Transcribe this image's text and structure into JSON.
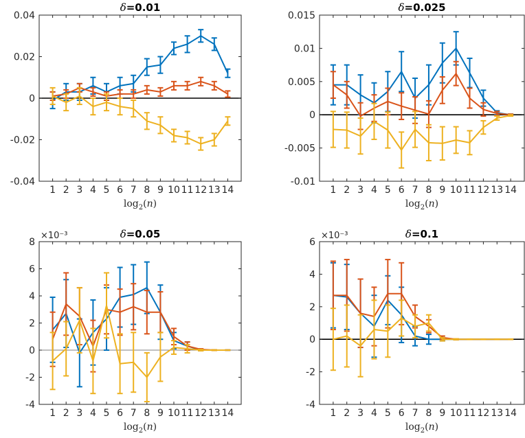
{
  "colors": {
    "s1": "#0072BD",
    "s2": "#D95319",
    "s3": "#EDB120",
    "axis": "#262626",
    "zero": "#000000"
  },
  "chart_data": [
    {
      "type": "line",
      "title": "δ=0.01",
      "xlabel": "log2(n)",
      "ylabel": "",
      "x": [
        1,
        2,
        3,
        4,
        5,
        6,
        7,
        8,
        9,
        10,
        11,
        12,
        13,
        14
      ],
      "xticks": [
        "1",
        "2",
        "3",
        "4",
        "5",
        "6",
        "7",
        "8",
        "9",
        "10",
        "11",
        "12",
        "13",
        "14"
      ],
      "xlim": [
        0,
        15
      ],
      "ylim": [
        -0.04,
        0.04
      ],
      "yticks": [
        -0.04,
        -0.02,
        0,
        0.02,
        0.04
      ],
      "ytick_labels": [
        "-0.04",
        "-0.02",
        "0",
        "0.02",
        "0.04"
      ],
      "multiplier": "",
      "zero_line": "thick",
      "series": [
        {
          "color": "s1",
          "y": [
            -0.001,
            0.003,
            0.003,
            0.006,
            0.003,
            0.006,
            0.007,
            0.015,
            0.016,
            0.024,
            0.026,
            0.03,
            0.026,
            0.012
          ],
          "err": [
            0.004,
            0.004,
            0.004,
            0.004,
            0.004,
            0.004,
            0.004,
            0.004,
            0.004,
            0.003,
            0.004,
            0.003,
            0.003,
            0.002
          ]
        },
        {
          "color": "s2",
          "y": [
            0.001,
            0.002,
            0.005,
            0.003,
            0.001,
            0.002,
            0.002,
            0.004,
            0.003,
            0.006,
            0.006,
            0.008,
            0.006,
            0.002
          ],
          "err": [
            0.002,
            0.002,
            0.002,
            0.002,
            0.002,
            0.002,
            0.002,
            0.002,
            0.002,
            0.002,
            0.002,
            0.002,
            0.002,
            0.0015
          ]
        },
        {
          "color": "s3",
          "y": [
            0.001,
            -0.002,
            0.001,
            -0.004,
            -0.002,
            -0.004,
            -0.005,
            -0.011,
            -0.013,
            -0.018,
            -0.019,
            -0.022,
            -0.02,
            -0.011
          ],
          "err": [
            0.004,
            0.004,
            0.004,
            0.004,
            0.004,
            0.004,
            0.004,
            0.004,
            0.004,
            0.003,
            0.003,
            0.003,
            0.003,
            0.002
          ]
        }
      ]
    },
    {
      "type": "line",
      "title": "δ=0.025",
      "xlabel": "log2(n)",
      "ylabel": "",
      "x": [
        1,
        2,
        3,
        4,
        5,
        6,
        7,
        8,
        9,
        10,
        11,
        12,
        13,
        14
      ],
      "xticks": [
        "1",
        "2",
        "3",
        "4",
        "5",
        "6",
        "7",
        "8",
        "9",
        "10",
        "11",
        "12",
        "13",
        "14"
      ],
      "xlim": [
        0,
        15
      ],
      "ylim": [
        -0.01,
        0.015
      ],
      "yticks": [
        -0.01,
        -0.005,
        0,
        0.005,
        0.01,
        0.015
      ],
      "ytick_labels": [
        "-0.01",
        "-0.005",
        "0",
        "0.005",
        "0.01",
        "0.015"
      ],
      "multiplier": "",
      "zero_line": "thick",
      "series": [
        {
          "color": "s1",
          "y": [
            0.0045,
            0.0045,
            0.003,
            0.0018,
            0.0035,
            0.0065,
            0.0025,
            0.0045,
            0.0078,
            0.01,
            0.0063,
            0.0025,
            0.0003,
            0
          ],
          "err": [
            0.003,
            0.003,
            0.003,
            0.003,
            0.003,
            0.003,
            0.003,
            0.003,
            0.003,
            0.0025,
            0.0022,
            0.0012,
            0.0003,
            0.0001
          ]
        },
        {
          "color": "s2",
          "y": [
            0.0045,
            0.003,
            -0.0002,
            0.001,
            0.002,
            0.0013,
            0.0007,
            0.0001,
            0.0037,
            0.0062,
            0.0025,
            0.0008,
            0.0002,
            0
          ],
          "err": [
            0.002,
            0.002,
            0.002,
            0.002,
            0.002,
            0.002,
            0.002,
            0.002,
            0.002,
            0.0018,
            0.0015,
            0.001,
            0.0003,
            0.0001
          ]
        },
        {
          "color": "s3",
          "y": [
            -0.0022,
            -0.0023,
            -0.0032,
            -0.001,
            -0.0023,
            -0.0053,
            -0.0022,
            -0.0042,
            -0.0043,
            -0.0038,
            -0.0042,
            -0.0019,
            -0.0005,
            -0.0001
          ],
          "err": [
            0.0027,
            0.0027,
            0.0027,
            0.0027,
            0.0027,
            0.0027,
            0.0027,
            0.0027,
            0.0025,
            0.002,
            0.0018,
            0.001,
            0.0003,
            0.0001
          ]
        }
      ]
    },
    {
      "type": "line",
      "title": "δ=0.05",
      "xlabel": "log2(n)",
      "ylabel": "",
      "x": [
        1,
        2,
        3,
        4,
        5,
        6,
        7,
        8,
        9,
        10,
        11,
        12,
        13,
        14
      ],
      "xticks": [
        "1",
        "2",
        "3",
        "4",
        "5",
        "6",
        "7",
        "8",
        "9",
        "10",
        "11",
        "12",
        "13",
        "14"
      ],
      "xlim": [
        0,
        15
      ],
      "ylim": [
        -4,
        8
      ],
      "yticks": [
        -4,
        -2,
        0,
        2,
        4,
        6,
        8
      ],
      "ytick_labels": [
        "-4",
        "-2",
        "0",
        "2",
        "4",
        "6",
        "8"
      ],
      "multiplier": "×10⁻³",
      "zero_line": "thin",
      "series": [
        {
          "color": "s1",
          "y": [
            1.5,
            2.7,
            -0.2,
            1.3,
            2.3,
            3.9,
            4.1,
            4.6,
            2.8,
            0.7,
            0.3,
            0,
            0,
            0
          ],
          "err": [
            2.4,
            2.5,
            2.5,
            2.4,
            2.3,
            2.2,
            2.2,
            1.9,
            2.0,
            0.6,
            0.3,
            0.05,
            0.02,
            0.01
          ]
        },
        {
          "color": "s2",
          "y": [
            0.8,
            3.4,
            2.5,
            0.3,
            3.0,
            2.8,
            3.2,
            2.8,
            2.8,
            1.0,
            0.3,
            0.05,
            0,
            0
          ],
          "err": [
            2.0,
            2.3,
            2.1,
            1.9,
            1.8,
            1.7,
            1.7,
            1.6,
            1.5,
            0.6,
            0.3,
            0.05,
            0.02,
            0.01
          ]
        },
        {
          "color": "s3",
          "y": [
            -0.8,
            0.1,
            2.2,
            -0.8,
            3.3,
            -1.0,
            -0.9,
            -2.0,
            -0.5,
            0.2,
            0.1,
            0,
            0,
            0
          ],
          "err": [
            2.1,
            2.0,
            2.4,
            2.4,
            2.4,
            2.2,
            2.2,
            1.8,
            1.8,
            0.5,
            0.3,
            0.05,
            0.02,
            0.01
          ]
        }
      ]
    },
    {
      "type": "line",
      "title": "δ=0.1",
      "xlabel": "log2(n)",
      "ylabel": "",
      "x": [
        1,
        2,
        3,
        4,
        5,
        6,
        7,
        8,
        9,
        10,
        11,
        12,
        13,
        14
      ],
      "xticks": [
        "1",
        "2",
        "3",
        "4",
        "5",
        "6",
        "7",
        "8",
        "9",
        "10",
        "11",
        "12",
        "13",
        "14"
      ],
      "xlim": [
        0,
        15
      ],
      "ylim": [
        -4,
        6
      ],
      "yticks": [
        -4,
        -2,
        0,
        2,
        4,
        6
      ],
      "ytick_labels": [
        "-4",
        "-2",
        "0",
        "2",
        "4",
        "6"
      ],
      "multiplier": "×10⁻³",
      "zero_line": "thick",
      "series": [
        {
          "color": "s1",
          "y": [
            2.7,
            2.6,
            1.6,
            0.8,
            2.4,
            1.5,
            0.2,
            0,
            0,
            0,
            0,
            0,
            0,
            0
          ],
          "err": [
            2.0,
            2.0,
            2.1,
            1.9,
            1.5,
            1.7,
            0.6,
            0.3,
            0.1,
            0.03,
            0.01,
            0.01,
            0.01,
            0.01
          ]
        },
        {
          "color": "s2",
          "y": [
            2.7,
            2.7,
            1.6,
            1.4,
            2.8,
            2.8,
            1.4,
            0.8,
            0.1,
            0,
            0,
            0,
            0,
            0
          ],
          "err": [
            2.1,
            2.2,
            2.1,
            1.8,
            2.1,
            1.9,
            0.7,
            0.4,
            0.1,
            0.03,
            0.01,
            0.01,
            0.01,
            0.01
          ]
        },
        {
          "color": "s3",
          "y": [
            0,
            0.2,
            -0.4,
            0.6,
            0.5,
            1.3,
            0.8,
            1.0,
            0,
            0,
            0,
            0,
            0,
            0
          ],
          "err": [
            1.9,
            1.9,
            1.9,
            1.8,
            1.6,
            1.1,
            0.7,
            0.5,
            0.1,
            0.03,
            0.01,
            0.01,
            0.01,
            0.01
          ]
        }
      ]
    }
  ]
}
